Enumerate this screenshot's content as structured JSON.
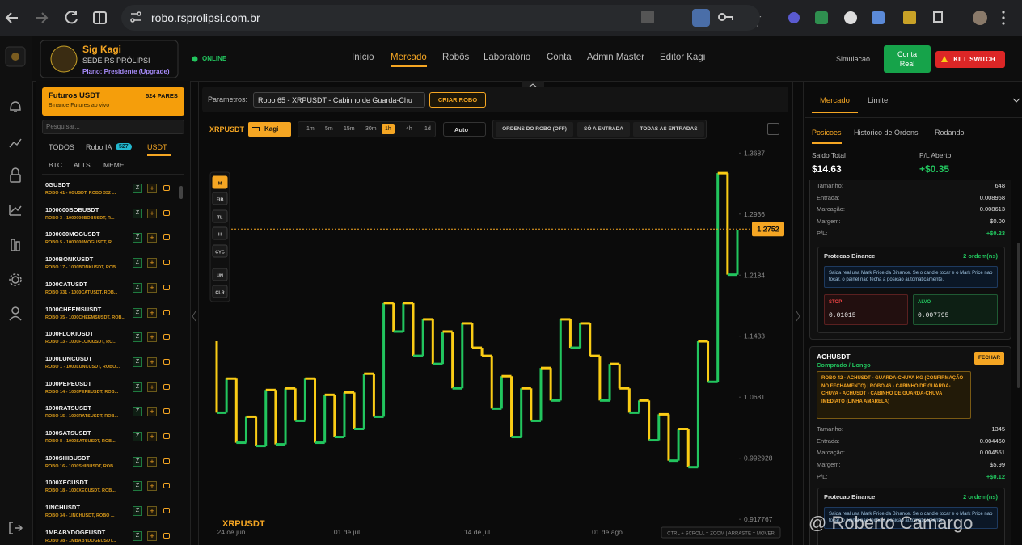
{
  "browser": {
    "url": "robo.rsprolipsi.com.br"
  },
  "profile": {
    "name": "Sig Kagi",
    "org": "SEDE RS PRÓLIPSI",
    "plan": "Plano: Presidente (Upgrade)"
  },
  "status": "ONLINE",
  "nav": {
    "items": [
      "Início",
      "Mercado",
      "Robôs",
      "Laboratório",
      "Conta",
      "Admin Master",
      "Editor Kagi"
    ],
    "active": 1
  },
  "header_actions": {
    "mode": "Simulacao",
    "account": "Conta Real",
    "kill": "KILL SWITCH"
  },
  "market": {
    "title": "Futuros USDT",
    "count": "524 PARES",
    "subtitle": "Binance Futures ao vivo",
    "search": "Pesquisar...",
    "tabs": [
      "TODOS",
      "Robo IA",
      "USDT"
    ],
    "robo_badge": "527",
    "subtabs": [
      "BTC",
      "ALTS",
      "MEME"
    ],
    "row_buttons": [
      "Z",
      "+"
    ],
    "pairs": [
      {
        "symbol": "0GUSDT",
        "robots": "ROBO 41 - 0GUSDT, ROBO 332 ..."
      },
      {
        "symbol": "1000000BOBUSDT",
        "robots": "ROBO 3 - 1000000BOBUSDT, R..."
      },
      {
        "symbol": "1000000MOGUSDT",
        "robots": "ROBO 5 - 1000000MOGUSDT, R..."
      },
      {
        "symbol": "1000BONKUSDT",
        "robots": "ROBO 17 - 1000BONKUSDT, ROB..."
      },
      {
        "symbol": "1000CATUSDT",
        "robots": "ROBO 331 - 1000CATUSDT, ROB..."
      },
      {
        "symbol": "1000CHEEMSUSDT",
        "robots": "ROBO 35 - 1000CHEEMSUSDT, ROB..."
      },
      {
        "symbol": "1000FLOKIUSDT",
        "robots": "ROBO 13 - 1000FLOKIUSDT, RO..."
      },
      {
        "symbol": "1000LUNCUSDT",
        "robots": "ROBO 1 - 1000LUNCUSDT, ROBO..."
      },
      {
        "symbol": "1000PEPEUSDT",
        "robots": "ROBO 14 - 1000PEPEUSDT, ROB..."
      },
      {
        "symbol": "1000RATSUSDT",
        "robots": "ROBO 15 - 1000RATSUSDT, ROB..."
      },
      {
        "symbol": "1000SATSUSDT",
        "robots": "ROBO 8 - 1000SATSUSDT, ROB..."
      },
      {
        "symbol": "1000SHIBUSDT",
        "robots": "ROBO 16 - 1000SHIBUSDT, ROB..."
      },
      {
        "symbol": "1000XECUSDT",
        "robots": "ROBO 18 - 1000XECUSDT, ROB..."
      },
      {
        "symbol": "1INCHUSDT",
        "robots": "ROBO 34 - 1INCHUSDT, ROBO ..."
      },
      {
        "symbol": "1MBABYDOGEUSDT",
        "robots": "ROBO 38 - 1MBABYDOGEUSDT..."
      }
    ]
  },
  "toolbar": {
    "params_label": "Parametros:",
    "robot_select": "Robo 65 - XRPUSDT - Cabinho de Guarda-Chu",
    "create": "CRIAR ROBO",
    "symbol": "XRPUSDT",
    "chart_type": "Kagi",
    "timeframes": [
      "1m",
      "5m",
      "15m",
      "30m",
      "1h",
      "4h",
      "1d"
    ],
    "active_timeframe": 4,
    "scale": "Auto",
    "order_buttons": [
      "ORDENS DO ROBO (OFF)",
      "SÓ A ENTRADA",
      "TODAS AS ENTRADAS"
    ]
  },
  "chart": {
    "type": "kagi",
    "symbol": "XRPUSDT",
    "values": [
      1.137,
      1.049,
      1.091,
      1.012,
      1.044,
      1.008,
      1.077,
      1.01,
      1.079,
      1.039,
      1.091,
      1.012,
      1.071,
      1.019,
      1.074,
      1.029,
      1.097,
      1.044,
      1.184,
      1.149,
      1.184,
      1.119,
      1.164,
      1.109,
      1.149,
      1.079,
      1.159,
      1.129,
      1.119,
      1.054,
      1.094,
      1.019,
      1.079,
      1.039,
      1.104,
      1.064,
      1.164,
      1.129,
      1.159,
      1.119,
      1.064,
      1.109,
      1.079,
      1.049,
      1.064,
      1.015,
      1.047,
      0.99,
      1.029,
      0.982,
      1.137,
      1.087,
      1.344,
      1.219,
      1.274
    ],
    "colors": {
      "up": "#22c55e",
      "down": "#facc15"
    },
    "ylim": [
      0.91,
      1.378
    ],
    "yticks": [
      1.3687,
      1.2936,
      1.2184,
      1.1433,
      1.0681,
      0.992928,
      0.917767
    ],
    "x_labels": [
      "24 de jun",
      "01 de jul",
      "14 de jul",
      "01 de ago"
    ],
    "last_price": 1.2752,
    "tools": [
      "M",
      "FIB",
      "TL",
      "H",
      "CYC",
      "UN",
      "CLR"
    ],
    "hint": "CTRL + SCROLL = ZOOM | ARRASTE = MOVER"
  },
  "positions_panel": {
    "tabs": [
      "Mercado",
      "Limite"
    ],
    "subtabs": [
      "Posicoes",
      "Historico de Ordens",
      "Rodando"
    ],
    "balance_label": "Saldo Total",
    "balance": "$14.63",
    "pl_label": "P/L Aberto",
    "pl": "+$0.35",
    "positions": [
      {
        "rows": [
          [
            "Tamanho:",
            "648"
          ],
          [
            "Entrada:",
            "0.008968"
          ],
          [
            "Marcação:",
            "0.008613"
          ],
          [
            "Margem:",
            "$0.00"
          ],
          [
            "P/L:",
            "+$0.23"
          ]
        ],
        "protection": {
          "title": "Protecao Binance",
          "count": "2 ordem(ns)",
          "note": "Saida real usa Mark Price da Binance. Se o candle tocar e o Mark Price nao tocar, o painel nao fecha a posicao automaticamente.",
          "stop_label": "STOP",
          "stop": "0.01015",
          "target_label": "ALVO",
          "target": "0.007795"
        }
      },
      {
        "symbol": "ACHUSDT",
        "side": "Comprado / Longo",
        "action": "FECHAR",
        "robots": "ROBO 42 - ACHUSDT - GUARDA-CHUVA KG (CONFIRMAÇÃO NO FECHAMENTO) | ROBO 46 - CABINHO DE GUARDA-CHUVA - ACHUSDT - CABINHO DE GUARDA-CHUVA IMEDIATO (LINHA AMARELA)",
        "rows": [
          [
            "Tamanho:",
            "1345"
          ],
          [
            "Entrada:",
            "0.004460"
          ],
          [
            "Marcação:",
            "0.004551"
          ],
          [
            "Margem:",
            "$5.99"
          ],
          [
            "P/L:",
            "+$0.12"
          ]
        ],
        "protection": {
          "title": "Protecao Binance",
          "count": "2 ordem(ns)",
          "note": "Saida real usa Mark Price da Binance. Se o candle tocar e o Mark Price nao tocar, o painel nao fecha a posicao automaticamente."
        }
      }
    ]
  },
  "overlay_watermark": "@ Roberto Camargo"
}
